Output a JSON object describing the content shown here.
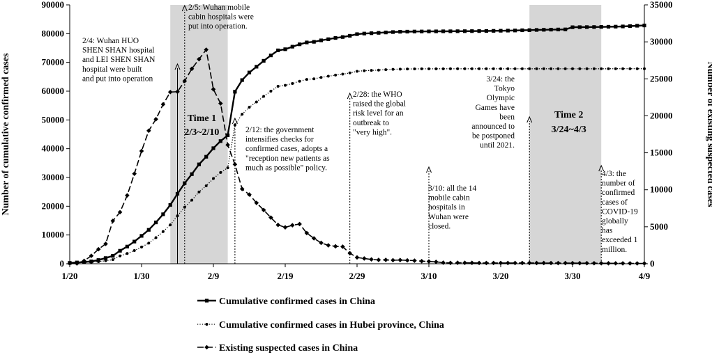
{
  "chart_data": {
    "type": "line",
    "x_start": "1/20",
    "x_end": "4/9",
    "x_ticks": [
      {
        "label": "1/20",
        "day": 0
      },
      {
        "label": "1/30",
        "day": 10
      },
      {
        "label": "2/9",
        "day": 20
      },
      {
        "label": "2/19",
        "day": 30
      },
      {
        "label": "2/29",
        "day": 40
      },
      {
        "label": "3/10",
        "day": 50
      },
      {
        "label": "3/20",
        "day": 60
      },
      {
        "label": "3/30",
        "day": 70
      },
      {
        "label": "4/9",
        "day": 80
      }
    ],
    "ylabel_left": "Number of cumulative confirmed cases",
    "ylim_left": [
      0,
      90000
    ],
    "yticks_left": [
      "0",
      "10000",
      "20000",
      "30000",
      "40000",
      "50000",
      "60000",
      "70000",
      "80000",
      "90000"
    ],
    "ylabel_right": "Number of existing suspected cases",
    "ylim_right": [
      0,
      35000
    ],
    "yticks_right": [
      "0",
      "5000",
      "10000",
      "15000",
      "20000",
      "25000",
      "30000",
      "35000"
    ],
    "series": [
      {
        "name": "Cumulative confirmed cases in China",
        "axis": "left",
        "style": "solid",
        "marker": "square",
        "values": [
          291,
          440,
          571,
          830,
          1287,
          1975,
          2744,
          4515,
          5974,
          7711,
          9692,
          11791,
          14380,
          17205,
          20438,
          24324,
          28018,
          31161,
          34546,
          37198,
          40171,
          42638,
          44653,
          59804,
          63851,
          66492,
          68500,
          70548,
          72436,
          74185,
          74576,
          75465,
          76288,
          76936,
          77150,
          77658,
          78064,
          78497,
          78824,
          79251,
          79824,
          80026,
          80151,
          80270,
          80409,
          80552,
          80651,
          80695,
          80735,
          80754,
          80778,
          80793,
          80813,
          80824,
          80844,
          80860,
          80881,
          80894,
          80928,
          80967,
          81008,
          81054,
          81093,
          81171,
          81218,
          81285,
          81340,
          81394,
          81439,
          81470,
          82227,
          82258,
          82273,
          82299,
          82339,
          82394,
          82432,
          82501,
          82615,
          82745,
          82847
        ]
      },
      {
        "name": "Cumulative confirmed cases in Hubei province, China",
        "axis": "left",
        "style": "dotted",
        "marker": "dot",
        "values": [
          270,
          375,
          444,
          549,
          729,
          1052,
          1423,
          2714,
          3554,
          4586,
          5806,
          7153,
          9074,
          11177,
          13522,
          16678,
          19665,
          22112,
          24953,
          27100,
          29631,
          31728,
          33366,
          48206,
          51986,
          54406,
          56249,
          58182,
          59989,
          61682,
          62031,
          62662,
          63454,
          64084,
          64287,
          64786,
          65187,
          65596,
          65914,
          66337,
          66907,
          67103,
          67217,
          67332,
          67466,
          67592,
          67666,
          67707,
          67743,
          67760,
          67773,
          67781,
          67786,
          67790,
          67794,
          67798,
          67799,
          67800,
          67800,
          67800,
          67800,
          67800,
          67800,
          67800,
          67800,
          67800,
          67801,
          67801,
          67801,
          67801,
          67801,
          67801,
          67802,
          67802,
          67802,
          67802,
          67803,
          67803,
          67803,
          67803,
          67803
        ]
      },
      {
        "name": "Existing suspected cases in China",
        "axis": "right",
        "style": "dashed",
        "marker": "diamond",
        "values": [
          54,
          37,
          393,
          1072,
          1965,
          2684,
          5794,
          6973,
          9239,
          12167,
          15238,
          17988,
          19544,
          21558,
          23214,
          23260,
          24702,
          26359,
          27657,
          28942,
          23589,
          21675,
          16067,
          13435,
          10109,
          9351,
          8228,
          7264,
          6242,
          5248,
          4922,
          5206,
          5365,
          4148,
          3434,
          2824,
          2491,
          2358,
          2308,
          1418,
          851,
          715,
          587,
          520,
          522,
          482,
          502,
          458,
          421,
          351,
          315,
          253,
          147,
          113,
          134,
          128,
          119,
          105,
          104,
          106,
          104,
          104,
          101,
          102,
          100,
          98,
          98,
          95,
          92,
          89,
          80,
          76,
          73,
          70,
          65,
          62,
          58,
          55,
          50,
          48,
          45
        ]
      }
    ],
    "shaded_periods": [
      {
        "label": "Time 1",
        "range_label": "2/3~2/10",
        "start_day": 14,
        "end_day": 22
      },
      {
        "label": "Time 2",
        "range_label": "3/24~4/3",
        "start_day": 64,
        "end_day": 74
      }
    ],
    "annotations": [
      {
        "day": 15,
        "text": [
          "2/4: Wuhan HUO",
          "SHEN SHAN hospital",
          "and LEI SHEN SHAN",
          "hospital were built",
          "and put into operation"
        ]
      },
      {
        "day": 16,
        "text": [
          "2/5: Wuhan mobile",
          "cabin hospitals were",
          "put into operation."
        ]
      },
      {
        "day": 23,
        "text": [
          "2/12: the government",
          "intensifies checks for",
          "confirmed cases, adopts a",
          "\"reception new patients as",
          "much as possible\" policy."
        ]
      },
      {
        "day": 39,
        "text": [
          "2/28: the WHO",
          "raised the global",
          "risk level for an",
          "outbreak to",
          "\"very high\"."
        ]
      },
      {
        "day": 50,
        "text": [
          "3/10: all the 14",
          "mobile cabin",
          "hospitals in",
          "Wuhan were",
          "closed."
        ]
      },
      {
        "day": 64,
        "text": [
          "3/24: the",
          "Tokyo",
          "Olympic",
          "Games have",
          "been",
          "announced to",
          "be postponed",
          "until 2021."
        ]
      },
      {
        "day": 74,
        "text": [
          "4/3: the",
          "number of",
          "confirmed",
          "cases of",
          "COVID-19",
          "globally",
          "has",
          "exceeded 1",
          "million."
        ]
      }
    ],
    "legend_position": "bottom",
    "grid": false
  }
}
